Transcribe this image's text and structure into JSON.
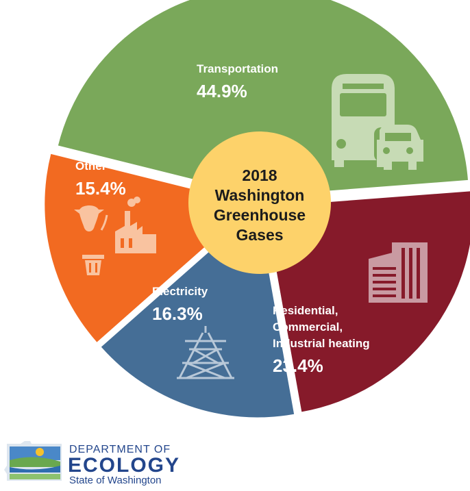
{
  "chart_data": {
    "type": "pie",
    "center_title": [
      "2018",
      "Washington",
      "Greenhouse",
      "Gases"
    ],
    "slices": [
      {
        "name": "Transportation",
        "label_lines": [
          "Transportation"
        ],
        "value": 44.9,
        "value_label": "44.9%",
        "color": "#7aa85a",
        "icon": "bus-car-icon"
      },
      {
        "name": "Residential, Commercial, Industrial heating",
        "label_lines": [
          "Residential,",
          "Commercial,",
          "Industrial heating"
        ],
        "value": 23.4,
        "value_label": "23.4%",
        "color": "#861a2a",
        "icon": "office-building-icon"
      },
      {
        "name": "Electricity",
        "label_lines": [
          "Electricity"
        ],
        "value": 16.3,
        "value_label": "16.3%",
        "color": "#456e96",
        "icon": "transmission-tower-icon"
      },
      {
        "name": "Other",
        "label_lines": [
          "Other"
        ],
        "value": 15.4,
        "value_label": "15.4%",
        "color": "#f26a21",
        "icon": "cow-factory-trash-icon"
      }
    ],
    "start_angle_deg": 284,
    "center_color": "#fdd26a",
    "legend": "none"
  },
  "logo": {
    "line1": "DEPARTMENT OF",
    "line2": "ECOLOGY",
    "line3": "State of Washington",
    "icon": "washington-state-icon"
  }
}
